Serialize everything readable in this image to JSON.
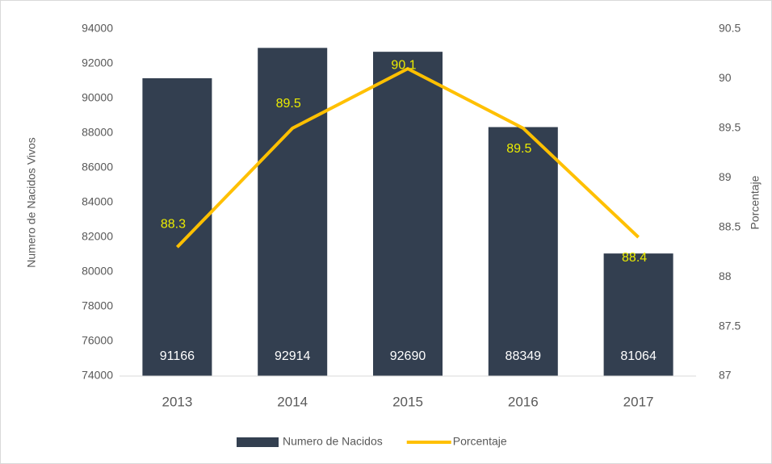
{
  "chart_data": {
    "type": "bar",
    "categories": [
      "2013",
      "2014",
      "2015",
      "2016",
      "2017"
    ],
    "series": [
      {
        "name": "Numero de Nacidos",
        "type": "bar",
        "color": "#333f50",
        "values": [
          91166,
          92914,
          92690,
          88349,
          81064
        ]
      },
      {
        "name": "Porcentaje",
        "type": "line",
        "axis": "y2",
        "color": "#ffc000",
        "values": [
          88.3,
          89.5,
          90.1,
          89.5,
          88.4
        ]
      }
    ],
    "ylabel": "Numero de Nacidos Vivos",
    "y2label": "Porcentaje",
    "ylim": [
      74000,
      94000
    ],
    "yticks": [
      74000,
      76000,
      78000,
      80000,
      82000,
      84000,
      86000,
      88000,
      90000,
      92000,
      94000
    ],
    "y2lim": [
      87,
      90.5
    ],
    "y2ticks": [
      87,
      87.5,
      88,
      88.5,
      89,
      89.5,
      90,
      90.5
    ],
    "legend": "bottom"
  }
}
